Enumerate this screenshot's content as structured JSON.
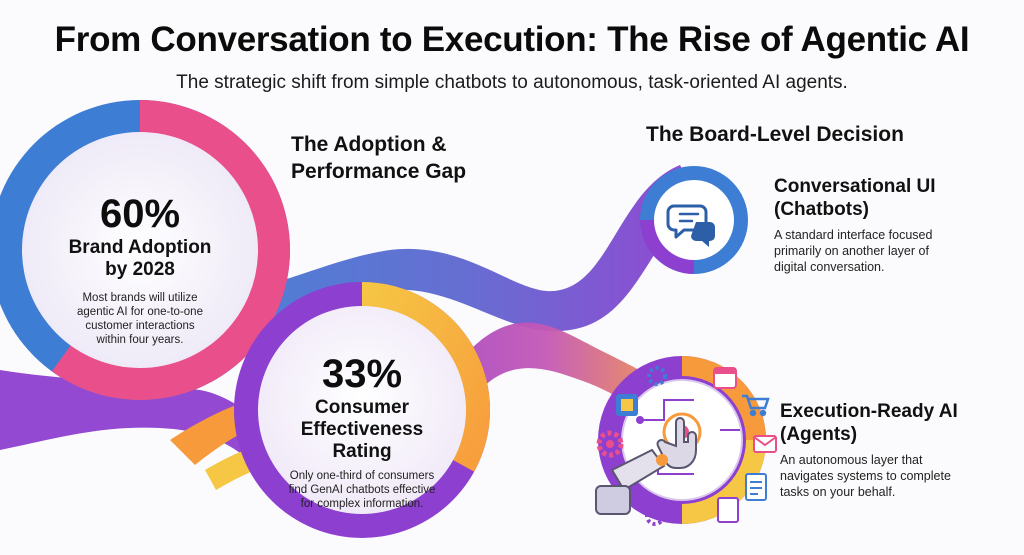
{
  "header": {
    "title": "From Conversation to Execution: The Rise of Agentic AI",
    "subtitle": "The strategic shift from simple chatbots to autonomous, task-oriented AI agents."
  },
  "adoption": {
    "heading_line1": "The Adoption &",
    "heading_line2": "Performance Gap",
    "stat1": {
      "value": "60%",
      "label_line1": "Brand Adoption",
      "label_line2": "by 2028",
      "desc_line1": "Most brands will utilize",
      "desc_line2": "agentic AI for one-to-one",
      "desc_line3": "customer interactions",
      "desc_line4": "within four years.",
      "fraction": 0.6
    },
    "stat2": {
      "value": "33%",
      "label_line1": "Consumer",
      "label_line2": "Effectiveness",
      "label_line3": "Rating",
      "desc_line1": "Only one-third of consumers",
      "desc_line2": "find GenAI chatbots effective",
      "desc_line3": "for complex information.",
      "fraction": 0.33
    }
  },
  "decision": {
    "heading": "The Board-Level Decision",
    "option1": {
      "title_line1": "Conversational UI",
      "title_line2": "(Chatbots)",
      "desc_line1": "A standard interface focused",
      "desc_line2": "primarily on another layer of",
      "desc_line3": "digital conversation."
    },
    "option2": {
      "title_line1": "Execution-Ready AI",
      "title_line2": "(Agents)",
      "desc_line1": "An autonomous layer that",
      "desc_line2": "navigates systems to complete",
      "desc_line3": "tasks on your behalf."
    }
  },
  "colors": {
    "blue": "#3d7ed4",
    "purple": "#8d3fd0",
    "pink": "#e94f8a",
    "orange": "#f79a3c",
    "yellow": "#f6c744",
    "lavender": "#e6ddf5"
  },
  "icons": [
    "chat-bubbles-icon",
    "robot-hand-icon",
    "gear-icon",
    "calendar-icon",
    "cart-icon",
    "envelope-icon",
    "document-icon",
    "chip-icon"
  ]
}
